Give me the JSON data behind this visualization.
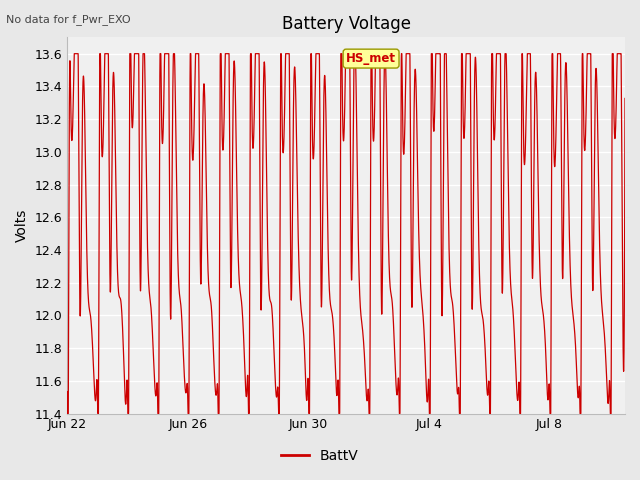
{
  "title": "Battery Voltage",
  "top_left_text": "No data for f_Pwr_EXO",
  "ylabel": "Volts",
  "legend_label": "BattV",
  "legend_color": "#cc0000",
  "line_color": "#cc0000",
  "annotation_label": "HS_met",
  "annotation_color": "#cc0000",
  "annotation_bg": "#ffff99",
  "annotation_border": "#999900",
  "ylim": [
    11.4,
    13.7
  ],
  "yticks": [
    11.4,
    11.6,
    11.8,
    12.0,
    12.2,
    12.4,
    12.6,
    12.8,
    13.0,
    13.2,
    13.4,
    13.6
  ],
  "bg_color": "#e8e8e8",
  "plot_bg": "#f0f0f0",
  "grid_color": "#ffffff",
  "total_days": 18.5,
  "x_tick_labels": [
    "Jun 22",
    "Jun 26",
    "Jun 30",
    "Jul 4",
    "Jul 8"
  ],
  "x_tick_positions": [
    0,
    4,
    8,
    12,
    16
  ],
  "line_width": 0.9,
  "title_fontsize": 12,
  "label_fontsize": 10,
  "tick_fontsize": 9
}
